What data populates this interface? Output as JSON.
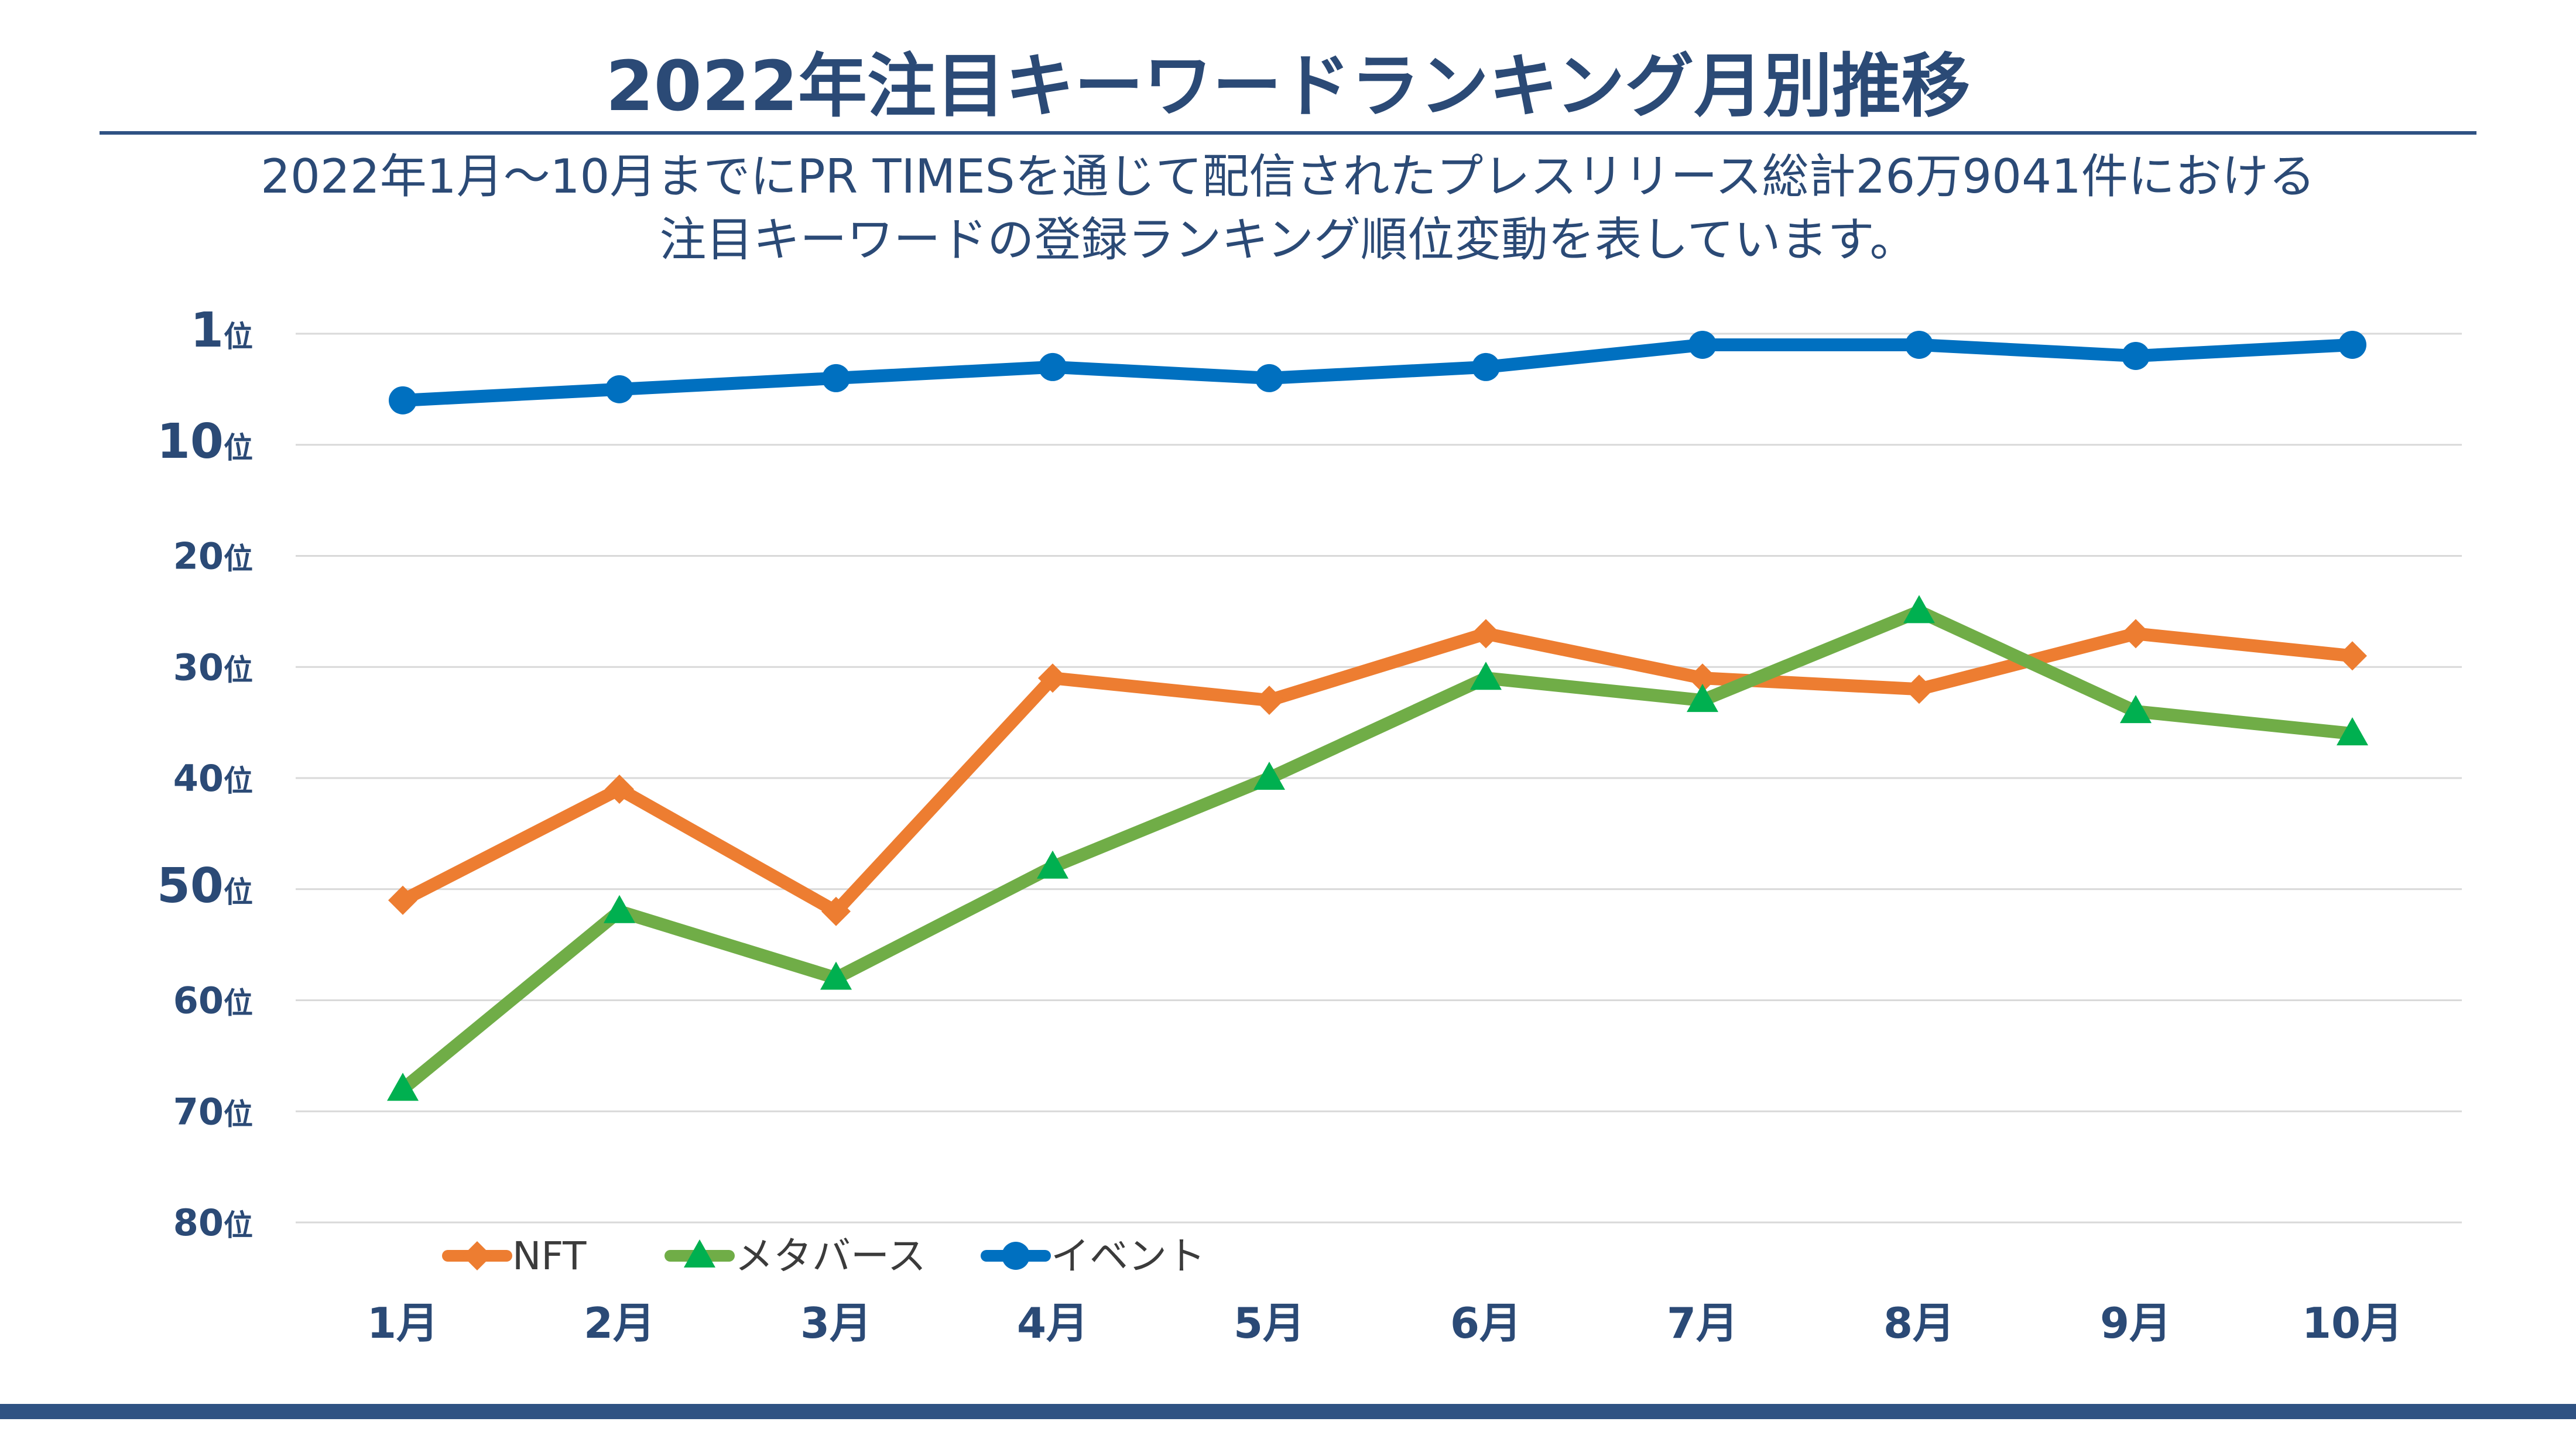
{
  "header": {
    "title": "2022年注目キーワードランキング月別推移",
    "subtitle_line1": "2022年1月〜10月までにPR TIMESを通じて配信されたプレスリリース総計26万9041件における",
    "subtitle_line2": "注目キーワードの登録ランキング順位変動を表しています。"
  },
  "chart_data": {
    "type": "line",
    "title": "2022年注目キーワードランキング月別推移",
    "categories": [
      "1月",
      "2月",
      "3月",
      "4月",
      "5月",
      "6月",
      "7月",
      "8月",
      "9月",
      "10月"
    ],
    "y_axis": {
      "inverted": true,
      "range": [
        0,
        80
      ],
      "ticks": [
        {
          "value": 0,
          "label": "1位"
        },
        {
          "value": 10,
          "label": "10位"
        },
        {
          "value": 20,
          "label": "20位"
        },
        {
          "value": 30,
          "label": "30位"
        },
        {
          "value": 40,
          "label": "40位"
        },
        {
          "value": 50,
          "label": "50位"
        },
        {
          "value": 60,
          "label": "60位"
        },
        {
          "value": 70,
          "label": "70位"
        },
        {
          "value": 80,
          "label": "80位"
        }
      ]
    },
    "grid": true,
    "legend_position": "bottom-left",
    "series": [
      {
        "name": "NFT",
        "marker": "diamond",
        "color": "#ed7d31",
        "values": [
          51,
          41,
          52,
          31,
          33,
          27,
          31,
          32,
          27,
          29
        ]
      },
      {
        "name": "メタバース",
        "marker": "triangle",
        "color": "#70ad47",
        "marker_color": "#00b050",
        "values": [
          68,
          52,
          58,
          48,
          40,
          31,
          33,
          25,
          34,
          36
        ]
      },
      {
        "name": "イベント",
        "marker": "circle",
        "color": "#0070c0",
        "values": [
          6,
          5,
          4,
          3,
          4,
          3,
          1,
          1,
          2,
          1
        ]
      }
    ]
  }
}
